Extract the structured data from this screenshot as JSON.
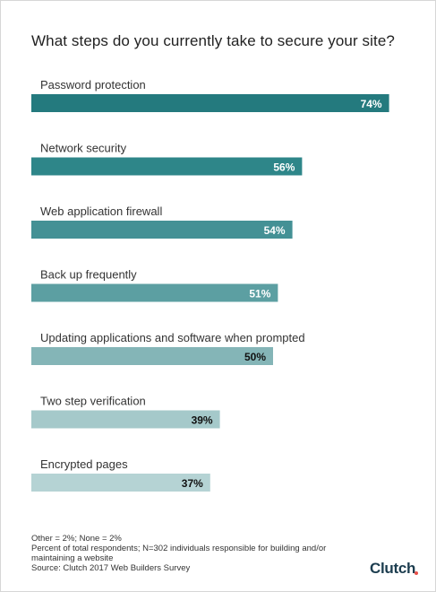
{
  "title": "What steps do you currently take to secure your site?",
  "chart_data": {
    "type": "bar",
    "orientation": "horizontal",
    "categories": [
      "Password protection",
      "Network security",
      "Web application firewall",
      "Back up frequently",
      "Updating applications and software when prompted",
      "Two step verification",
      "Encrypted pages"
    ],
    "values": [
      74,
      56,
      54,
      51,
      50,
      39,
      37
    ],
    "value_labels": [
      "74%",
      "56%",
      "54%",
      "51%",
      "50%",
      "39%",
      "37%"
    ],
    "colors": [
      "#247a7e",
      "#2e8689",
      "#449195",
      "#5c9fa2",
      "#84b5b7",
      "#a5c9ca",
      "#b5d3d4"
    ],
    "label_colors": [
      "#ffffff",
      "#ffffff",
      "#ffffff",
      "#ffffff",
      "#111111",
      "#111111",
      "#111111"
    ],
    "xlim": [
      0,
      100
    ],
    "grid": false,
    "legend": "none"
  },
  "notes": [
    "Other = 2%; None = 2%",
    "Percent of total respondents; N=302 individuals responsible for building and/or maintaining a website",
    "Source: Clutch 2017 Web Builders Survey"
  ],
  "logo": {
    "text": "Clutch",
    "dot_color": "#e8504a"
  }
}
